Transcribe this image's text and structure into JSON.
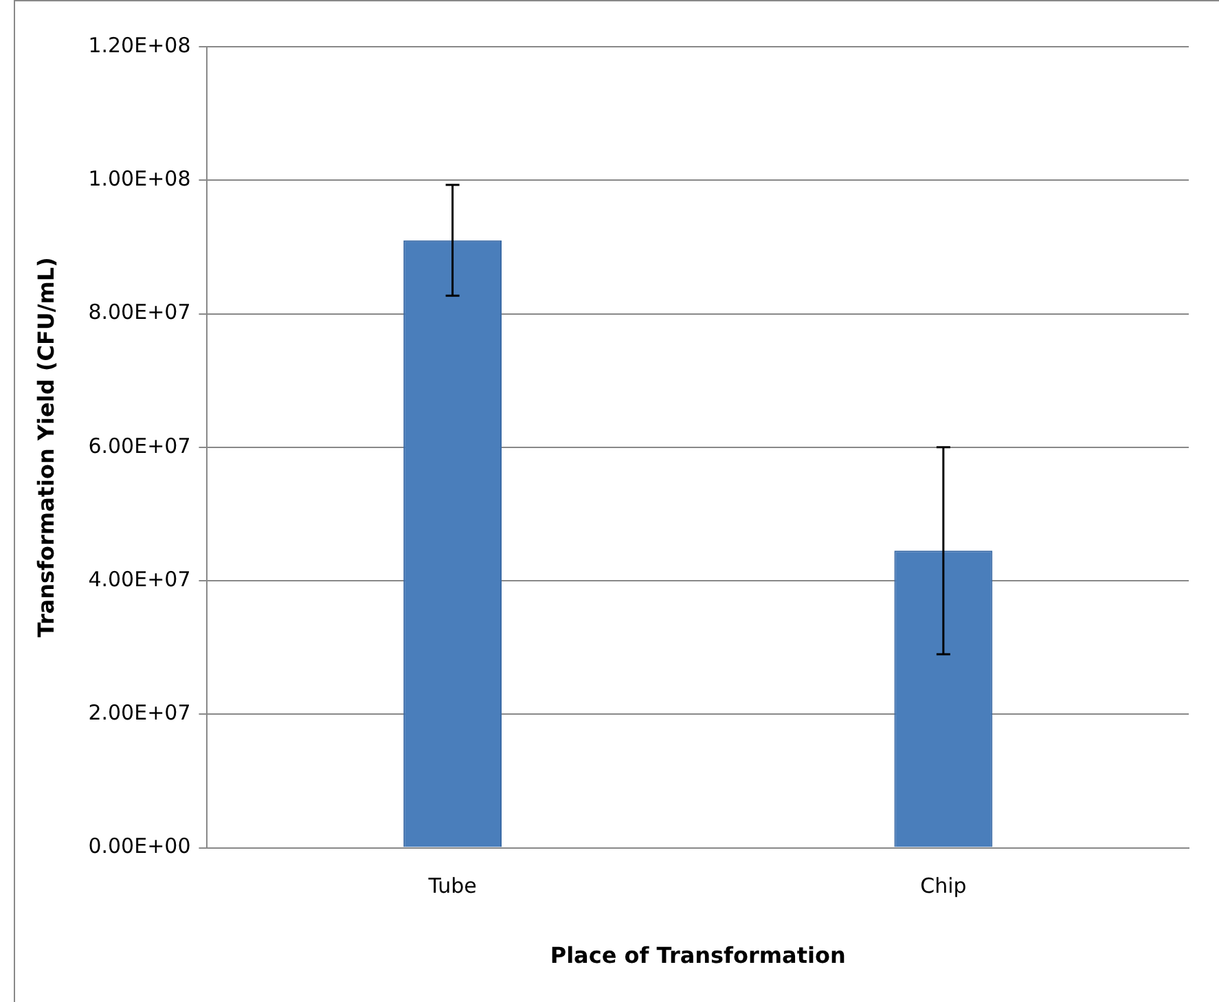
{
  "chart_data": {
    "type": "bar",
    "xlabel": "Place of Transformation",
    "ylabel": "Transformation Yield (CFU/mL)",
    "categories": [
      "Tube",
      "Chip"
    ],
    "values": [
      91000000,
      44500000
    ],
    "errors": [
      8300000,
      15500000
    ],
    "color": "#4a7ebb",
    "ylim": [
      0,
      120000000
    ],
    "yticks": [
      {
        "value": 0,
        "label": "0.00E+00"
      },
      {
        "value": 20000000,
        "label": "2.00E+07"
      },
      {
        "value": 40000000,
        "label": "4.00E+07"
      },
      {
        "value": 60000000,
        "label": "6.00E+07"
      },
      {
        "value": 80000000,
        "label": "8.00E+07"
      },
      {
        "value": 100000000,
        "label": "1.00E+08"
      },
      {
        "value": 120000000,
        "label": "1.20E+08"
      }
    ],
    "grid": "y",
    "legend": false
  }
}
